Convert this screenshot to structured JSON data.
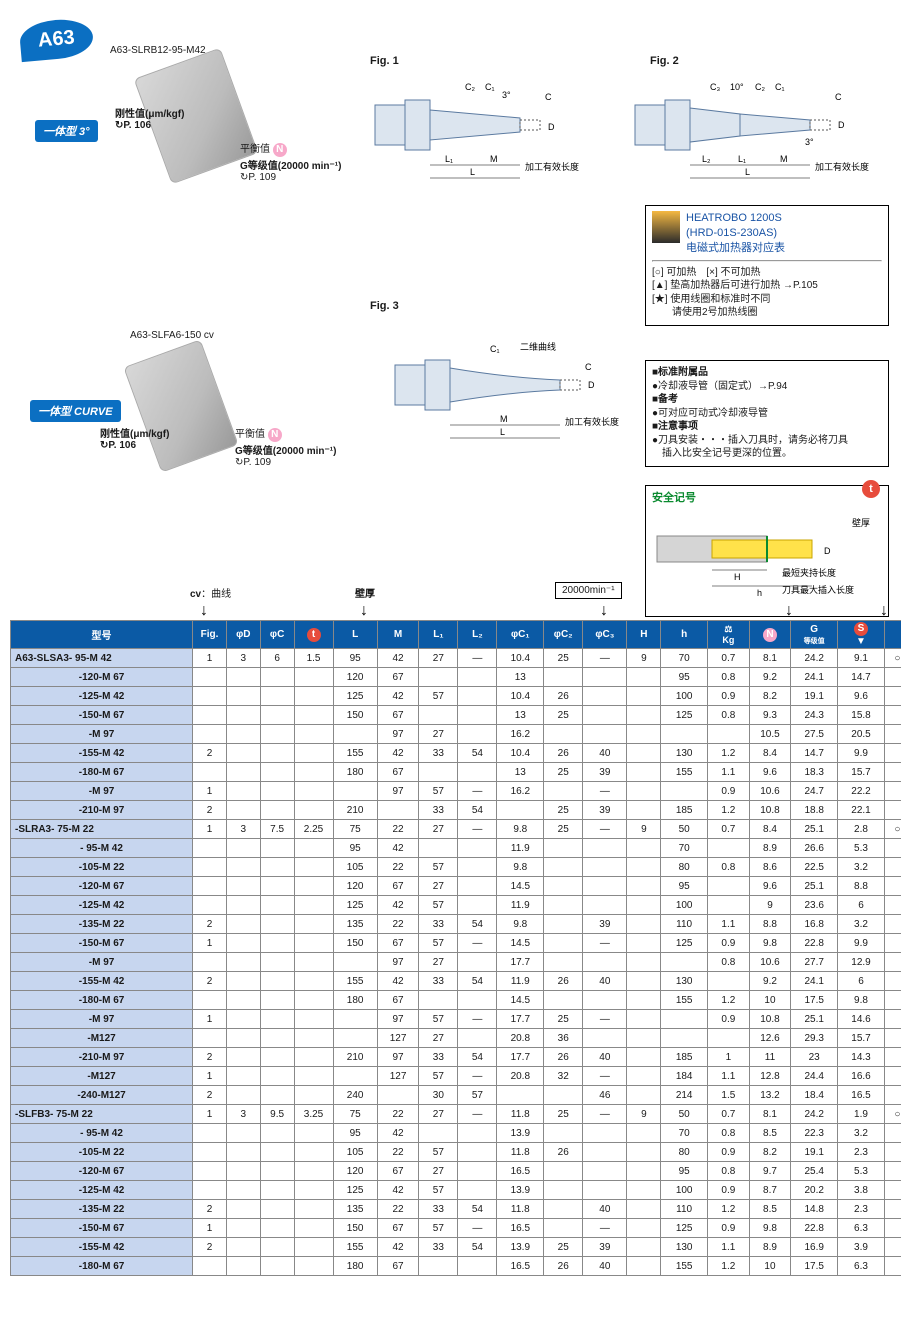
{
  "badge": "A63",
  "model1_label": "A63-SLRB12-95-M42",
  "model2_label": "A63-SLFA6-150 cv",
  "type_tag_1": "一体型 3°",
  "type_tag_2": "一体型 CURVE",
  "rigidity_label": "刚性值(μm/kgf)",
  "rigidity_page": "↻P. 106",
  "balance_label": "平衡值",
  "g_label": "G等级值(20000 min⁻¹)",
  "g_page": "↻P. 109",
  "fig1_label": "Fig. 1",
  "fig2_label": "Fig. 2",
  "fig3_label": "Fig. 3",
  "fig_c2": "C₂",
  "fig_c1": "C₁",
  "fig_c3": "C₃",
  "fig_angle3": "3°",
  "fig_angle10": "10°",
  "fig_c": "C",
  "fig_d": "D",
  "fig_l2": "L₂",
  "fig_l1": "L₁",
  "fig_m": "M",
  "fig_l": "L",
  "fig_work_len": "加工有效长度",
  "fig_curve": "二维曲线",
  "heat_title1": "HEATROBO 1200S",
  "heat_title2": "(HRD-01S-230AS)",
  "heat_title3": "电磁式加热器对应表",
  "heat_line1": "[○] 可加热　[×] 不可加热",
  "heat_line2": "[▲] 垫高加热器后可进行加热 →P.105",
  "heat_line3": "[★] 使用线圈和标准时不同",
  "heat_line4": "　　请使用2号加热线圈",
  "info_head1": "■标准附属品",
  "info_line1": "●冷却液导管（固定式）→P.94",
  "info_head2": "■备考",
  "info_line2": "●可对应可动式冷却液导管",
  "info_head3": "■注意事项",
  "info_line3": "●刀具安装・・・插入刀具时，请务必将刀具",
  "info_line4": "　插入比安全记号更深的位置。",
  "safety_label": "安全记号",
  "wall_label": "壁厚",
  "safety_D": "D",
  "safety_H": "H",
  "safety_h": "h",
  "safety_short": "最短夹持长度",
  "safety_max": "刀具最大插入长度",
  "speed_box": "20000min⁻¹",
  "legend_cv": "cv：曲线",
  "legend_wall": "壁厚",
  "columns": [
    "型号",
    "Fig.",
    "φD",
    "φC",
    "t",
    "L",
    "M",
    "L₁",
    "L₂",
    "φC₁",
    "φC₂",
    "φC₃",
    "H",
    "h",
    "Kg",
    "N",
    "G",
    "S",
    ""
  ],
  "rows": [
    [
      "A63-SLSA3- 95-M 42",
      "1",
      "3",
      "6",
      "1.5",
      "95",
      "42",
      "27",
      "—",
      "10.4",
      "25",
      "—",
      "9",
      "70",
      "0.7",
      "8.1",
      "24.2",
      "9.1",
      "○"
    ],
    [
      "-120-M 67",
      "",
      "",
      "",
      "",
      "120",
      "67",
      "",
      "",
      "13",
      "",
      "",
      "",
      "95",
      "0.8",
      "9.2",
      "24.1",
      "14.7",
      ""
    ],
    [
      "-125-M 42",
      "",
      "",
      "",
      "",
      "125",
      "42",
      "57",
      "",
      "10.4",
      "26",
      "",
      "",
      "100",
      "0.9",
      "8.2",
      "19.1",
      "9.6",
      ""
    ],
    [
      "-150-M 67",
      "",
      "",
      "",
      "",
      "150",
      "67",
      "",
      "",
      "13",
      "25",
      "",
      "",
      "125",
      "0.8",
      "9.3",
      "24.3",
      "15.8",
      ""
    ],
    [
      "-M 97",
      "",
      "",
      "",
      "",
      "",
      "97",
      "27",
      "",
      "16.2",
      "",
      "",
      "",
      "",
      "",
      "10.5",
      "27.5",
      "20.5",
      ""
    ],
    [
      "-155-M 42",
      "2",
      "",
      "",
      "",
      "155",
      "42",
      "33",
      "54",
      "10.4",
      "26",
      "40",
      "",
      "130",
      "1.2",
      "8.4",
      "14.7",
      "9.9",
      ""
    ],
    [
      "-180-M 67",
      "",
      "",
      "",
      "",
      "180",
      "67",
      "",
      "",
      "13",
      "25",
      "39",
      "",
      "155",
      "1.1",
      "9.6",
      "18.3",
      "15.7",
      ""
    ],
    [
      "-M 97",
      "1",
      "",
      "",
      "",
      "",
      "97",
      "57",
      "—",
      "16.2",
      "",
      "—",
      "",
      "",
      "0.9",
      "10.6",
      "24.7",
      "22.2",
      ""
    ],
    [
      "-210-M 97",
      "2",
      "",
      "",
      "",
      "210",
      "",
      "33",
      "54",
      "",
      "25",
      "39",
      "",
      "185",
      "1.2",
      "10.8",
      "18.8",
      "22.1",
      ""
    ],
    [
      "-SLRA3- 75-M 22",
      "1",
      "3",
      "7.5",
      "2.25",
      "75",
      "22",
      "27",
      "—",
      "9.8",
      "25",
      "—",
      "9",
      "50",
      "0.7",
      "8.4",
      "25.1",
      "2.8",
      "○"
    ],
    [
      "- 95-M 42",
      "",
      "",
      "",
      "",
      "95",
      "42",
      "",
      "",
      "11.9",
      "",
      "",
      "",
      "70",
      "",
      "8.9",
      "26.6",
      "5.3",
      ""
    ],
    [
      "-105-M 22",
      "",
      "",
      "",
      "",
      "105",
      "22",
      "57",
      "",
      "9.8",
      "",
      "",
      "",
      "80",
      "0.8",
      "8.6",
      "22.5",
      "3.2",
      ""
    ],
    [
      "-120-M 67",
      "",
      "",
      "",
      "",
      "120",
      "67",
      "27",
      "",
      "14.5",
      "",
      "",
      "",
      "95",
      "",
      "9.6",
      "25.1",
      "8.8",
      ""
    ],
    [
      "-125-M 42",
      "",
      "",
      "",
      "",
      "125",
      "42",
      "57",
      "",
      "11.9",
      "",
      "",
      "",
      "100",
      "",
      "9",
      "23.6",
      "6",
      ""
    ],
    [
      "-135-M 22",
      "2",
      "",
      "",
      "",
      "135",
      "22",
      "33",
      "54",
      "9.8",
      "",
      "39",
      "",
      "110",
      "1.1",
      "8.8",
      "16.8",
      "3.2",
      ""
    ],
    [
      "-150-M 67",
      "1",
      "",
      "",
      "",
      "150",
      "67",
      "57",
      "—",
      "14.5",
      "",
      "—",
      "",
      "125",
      "0.9",
      "9.8",
      "22.8",
      "9.9",
      ""
    ],
    [
      "-M 97",
      "",
      "",
      "",
      "",
      "",
      "97",
      "27",
      "",
      "17.7",
      "",
      "",
      "",
      "",
      "0.8",
      "10.6",
      "27.7",
      "12.9",
      ""
    ],
    [
      "-155-M 42",
      "2",
      "",
      "",
      "",
      "155",
      "42",
      "33",
      "54",
      "11.9",
      "26",
      "40",
      "",
      "130",
      "",
      "9.2",
      "24.1",
      "6",
      ""
    ],
    [
      "-180-M 67",
      "",
      "",
      "",
      "",
      "180",
      "67",
      "",
      "",
      "14.5",
      "",
      "",
      "",
      "155",
      "1.2",
      "10",
      "17.5",
      "9.8",
      ""
    ],
    [
      "-M 97",
      "1",
      "",
      "",
      "",
      "",
      "97",
      "57",
      "—",
      "17.7",
      "25",
      "—",
      "",
      "",
      "0.9",
      "10.8",
      "25.1",
      "14.6",
      ""
    ],
    [
      "-M127",
      "",
      "",
      "",
      "",
      "",
      "127",
      "27",
      "",
      "20.8",
      "36",
      "",
      "",
      "",
      "",
      "12.6",
      "29.3",
      "15.7",
      ""
    ],
    [
      "-210-M 97",
      "2",
      "",
      "",
      "",
      "210",
      "97",
      "33",
      "54",
      "17.7",
      "26",
      "40",
      "",
      "185",
      "1",
      "11",
      "23",
      "14.3",
      ""
    ],
    [
      "-M127",
      "1",
      "",
      "",
      "",
      "",
      "127",
      "57",
      "—",
      "20.8",
      "32",
      "—",
      "",
      "184",
      "1.1",
      "12.8",
      "24.4",
      "16.6",
      ""
    ],
    [
      "-240-M127",
      "2",
      "",
      "",
      "",
      "240",
      "",
      "30",
      "57",
      "",
      "",
      "46",
      "",
      "214",
      "1.5",
      "13.2",
      "18.4",
      "16.5",
      ""
    ],
    [
      "-SLFB3- 75-M 22",
      "1",
      "3",
      "9.5",
      "3.25",
      "75",
      "22",
      "27",
      "—",
      "11.8",
      "25",
      "—",
      "9",
      "50",
      "0.7",
      "8.1",
      "24.2",
      "1.9",
      "○"
    ],
    [
      "- 95-M 42",
      "",
      "",
      "",
      "",
      "95",
      "42",
      "",
      "",
      "13.9",
      "",
      "",
      "",
      "70",
      "0.8",
      "8.5",
      "22.3",
      "3.2",
      ""
    ],
    [
      "-105-M 22",
      "",
      "",
      "",
      "",
      "105",
      "22",
      "57",
      "",
      "11.8",
      "26",
      "",
      "",
      "80",
      "0.9",
      "8.2",
      "19.1",
      "2.3",
      ""
    ],
    [
      "-120-M 67",
      "",
      "",
      "",
      "",
      "120",
      "67",
      "27",
      "",
      "16.5",
      "",
      "",
      "",
      "95",
      "0.8",
      "9.7",
      "25.4",
      "5.3",
      ""
    ],
    [
      "-125-M 42",
      "",
      "",
      "",
      "",
      "125",
      "42",
      "57",
      "",
      "13.9",
      "",
      "",
      "",
      "100",
      "0.9",
      "8.7",
      "20.2",
      "3.8",
      ""
    ],
    [
      "-135-M 22",
      "2",
      "",
      "",
      "",
      "135",
      "22",
      "33",
      "54",
      "11.8",
      "",
      "40",
      "",
      "110",
      "1.2",
      "8.5",
      "14.8",
      "2.3",
      ""
    ],
    [
      "-150-M 67",
      "1",
      "",
      "",
      "",
      "150",
      "67",
      "57",
      "—",
      "16.5",
      "",
      "—",
      "",
      "125",
      "0.9",
      "9.8",
      "22.8",
      "6.3",
      ""
    ],
    [
      "-155-M 42",
      "2",
      "",
      "",
      "",
      "155",
      "42",
      "33",
      "54",
      "13.9",
      "25",
      "39",
      "",
      "130",
      "1.1",
      "8.9",
      "16.9",
      "3.9",
      ""
    ],
    [
      "-180-M 67",
      "",
      "",
      "",
      "",
      "180",
      "67",
      "",
      "",
      "16.5",
      "26",
      "40",
      "",
      "155",
      "1.2",
      "10",
      "17.5",
      "6.3",
      ""
    ]
  ],
  "group_starts": [
    0,
    9,
    24
  ]
}
